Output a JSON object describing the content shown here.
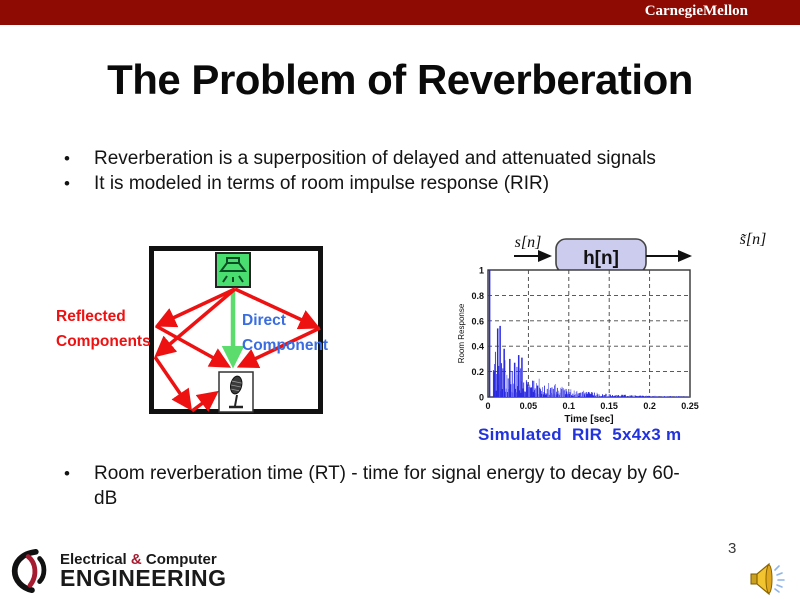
{
  "header": {
    "brand": "CarnegieMellon",
    "bar_color": "#8e0b04"
  },
  "slide": {
    "title": "The Problem of Reverberation",
    "page_number": "3"
  },
  "bullets": {
    "top": [
      "Reverberation is a superposition of delayed and attenuated signals",
      "It is modeled in terms of room impulse response (RIR)"
    ],
    "bottom": "Room reverberation time (RT) - time for signal energy to decay by 60-\ndB",
    "marker": "•"
  },
  "room_diagram": {
    "reflected_line1": "Reflected",
    "reflected_line2": "Components",
    "direct_line1": "Direct",
    "direct_line2": "Component",
    "colors": {
      "reflected_text": "#ee1111",
      "direct_text": "#3a6ee0",
      "reflection_arrows": "#ee1111",
      "direct_arrow": "#5cdc6c",
      "speaker_box": "#4ade70",
      "room_border": "#111111"
    }
  },
  "block_diagram": {
    "input_label": "s[n]",
    "system_label": "h[n]",
    "output_label": "s̃[n]",
    "box_fill": "#ccccee"
  },
  "chart_data": {
    "type": "stem",
    "title": "Simulated room impulse response (RIR)",
    "xlabel": "Time [sec]",
    "ylabel": "Room Response",
    "xlim": [
      0,
      0.25
    ],
    "ylim": [
      0,
      1
    ],
    "xticks": [
      "0",
      "0.05",
      "0.1",
      "0.15",
      "0.2",
      "0.25"
    ],
    "yticks": [
      "0",
      "0.2",
      "0.4",
      "0.6",
      "0.8",
      "1"
    ],
    "grid": "dashed",
    "legend": "none",
    "line_color": "#2a2ae0",
    "line_color_light": "#7d7df0",
    "early_reflections": [
      [
        0.002,
        1.0
      ],
      [
        0.012,
        0.54
      ],
      [
        0.015,
        0.56
      ],
      [
        0.02,
        0.38
      ],
      [
        0.027,
        0.3
      ],
      [
        0.033,
        0.27
      ],
      [
        0.038,
        0.33
      ],
      [
        0.042,
        0.31
      ]
    ],
    "decay": {
      "start_amplitude": 0.35,
      "tau_sec": 0.055
    },
    "note": "Direct-path impulse of amplitude 1.0 near t=0, early reflections 0.3-0.56 for t=0.01-0.04 s, dense stochastic tail decaying exponentially to ~0 by t=0.25 s"
  },
  "chart_caption": {
    "text": "Simulated  RIR  5x4x3 m",
    "color": "#2233dd"
  },
  "footer_logo": {
    "line1_part1": "Electrical ",
    "line1_amp": "&",
    "line1_part2": " Computer",
    "line2": "ENGINEERING",
    "amp_color": "#a51c30"
  }
}
